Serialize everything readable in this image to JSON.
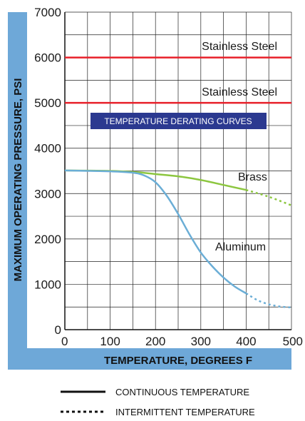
{
  "chart_data": {
    "type": "line",
    "title": "",
    "xlabel": "TEMPERATURE, DEGREES F",
    "ylabel": "MAXIMUM OPERATING PRESSURE, PSI",
    "xlim": [
      0,
      500
    ],
    "ylim": [
      0,
      7000
    ],
    "x_ticks": [
      "0",
      "100",
      "200",
      "300",
      "400",
      "500"
    ],
    "y_ticks": [
      "0",
      "1000",
      "2000",
      "3000",
      "4000",
      "5000",
      "6000",
      "7000"
    ],
    "grid": true,
    "annotation": "TEMPERATURE DERATING CURVES",
    "series": [
      {
        "name": "Stainless Steel",
        "color": "#e8202a",
        "continuous": [
          [
            0,
            6000
          ],
          [
            500,
            6000
          ]
        ],
        "intermittent": []
      },
      {
        "name": "Stainless Steel",
        "color": "#e8202a",
        "continuous": [
          [
            0,
            5000
          ],
          [
            500,
            5000
          ]
        ],
        "intermittent": []
      },
      {
        "name": "Brass",
        "color": "#8cc63f",
        "continuous": [
          [
            0,
            3510
          ],
          [
            100,
            3500
          ],
          [
            160,
            3470
          ],
          [
            200,
            3430
          ],
          [
            250,
            3380
          ],
          [
            300,
            3300
          ],
          [
            350,
            3190
          ],
          [
            400,
            3080
          ]
        ],
        "intermittent": [
          [
            400,
            3080
          ],
          [
            450,
            2930
          ],
          [
            500,
            2740
          ]
        ]
      },
      {
        "name": "Aluminum",
        "color": "#6baed6",
        "continuous": [
          [
            0,
            3510
          ],
          [
            100,
            3490
          ],
          [
            150,
            3460
          ],
          [
            175,
            3400
          ],
          [
            200,
            3250
          ],
          [
            225,
            2950
          ],
          [
            250,
            2550
          ],
          [
            275,
            2100
          ],
          [
            300,
            1700
          ],
          [
            325,
            1400
          ],
          [
            350,
            1150
          ],
          [
            375,
            950
          ],
          [
            400,
            800
          ]
        ],
        "intermittent": [
          [
            400,
            800
          ],
          [
            425,
            650
          ],
          [
            450,
            560
          ],
          [
            475,
            510
          ],
          [
            500,
            490
          ]
        ]
      }
    ],
    "legend": [
      {
        "style": "solid",
        "label": "CONTINUOUS TEMPERATURE"
      },
      {
        "style": "dotted",
        "label": "INTERMITTENT TEMPERATURE"
      }
    ]
  },
  "colors": {
    "frame": "#6ea8d8",
    "grid": "#222222",
    "banner": "#2b3990"
  }
}
